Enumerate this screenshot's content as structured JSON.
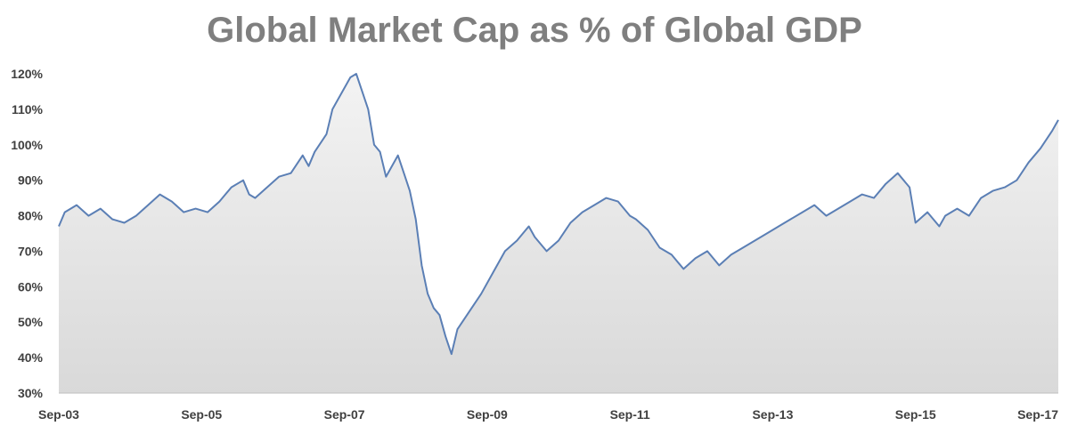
{
  "chart_data": {
    "type": "area",
    "title": "Global Market Cap as % of Global GDP",
    "xlabel": "",
    "ylabel": "",
    "y_tick_labels": [
      "30%",
      "40%",
      "50%",
      "60%",
      "70%",
      "80%",
      "90%",
      "100%",
      "110%",
      "120%"
    ],
    "x_tick_labels": [
      "Sep-03",
      "Sep-05",
      "Sep-07",
      "Sep-09",
      "Sep-11",
      "Sep-13",
      "Sep-15",
      "Sep-17"
    ],
    "ylim": [
      30,
      120
    ],
    "xlim": [
      "2003-09",
      "2017-09"
    ],
    "grid": false,
    "legend": "none",
    "line_color": "#5b7fb5",
    "fill_color": "#d9d9d9",
    "series": [
      {
        "x": [
          "2003-09",
          "2003-10",
          "2003-12",
          "2004-02",
          "2004-04",
          "2004-06",
          "2004-08",
          "2004-10",
          "2004-12",
          "2005-02",
          "2005-04",
          "2005-06",
          "2005-08",
          "2005-10",
          "2005-12",
          "2006-02",
          "2006-04",
          "2006-05",
          "2006-06",
          "2006-08",
          "2006-10",
          "2006-12",
          "2007-02",
          "2007-03",
          "2007-04",
          "2007-06",
          "2007-07",
          "2007-08",
          "2007-10",
          "2007-11",
          "2007-12",
          "2008-01",
          "2008-02",
          "2008-03",
          "2008-04",
          "2008-05",
          "2008-06",
          "2008-07",
          "2008-08",
          "2008-09",
          "2008-10",
          "2008-11",
          "2008-12",
          "2009-01",
          "2009-02",
          "2009-03",
          "2009-04",
          "2009-06",
          "2009-08",
          "2009-10",
          "2009-12",
          "2010-02",
          "2010-04",
          "2010-05",
          "2010-07",
          "2010-09",
          "2010-11",
          "2011-01",
          "2011-03",
          "2011-05",
          "2011-07",
          "2011-09",
          "2011-10",
          "2011-12",
          "2012-02",
          "2012-04",
          "2012-06",
          "2012-08",
          "2012-10",
          "2012-12",
          "2013-02",
          "2013-04",
          "2013-06",
          "2013-08",
          "2013-10",
          "2013-12",
          "2014-02",
          "2014-04",
          "2014-06",
          "2014-08",
          "2014-10",
          "2014-12",
          "2015-02",
          "2015-04",
          "2015-06",
          "2015-08",
          "2015-09",
          "2015-11",
          "2016-01",
          "2016-02",
          "2016-04",
          "2016-06",
          "2016-08",
          "2016-10",
          "2016-12",
          "2017-02",
          "2017-04",
          "2017-06",
          "2017-08",
          "2017-09"
        ],
        "values": [
          77,
          81,
          83,
          80,
          82,
          79,
          78,
          80,
          83,
          86,
          84,
          81,
          82,
          81,
          84,
          88,
          90,
          86,
          85,
          88,
          91,
          92,
          97,
          94,
          98,
          103,
          110,
          113,
          119,
          120,
          115,
          110,
          100,
          98,
          91,
          94,
          97,
          92,
          87,
          79,
          66,
          58,
          54,
          52,
          46,
          41,
          48,
          53,
          58,
          64,
          70,
          73,
          77,
          74,
          70,
          73,
          78,
          81,
          83,
          85,
          84,
          80,
          79,
          76,
          71,
          69,
          65,
          68,
          70,
          66,
          69,
          71,
          73,
          75,
          77,
          79,
          81,
          83,
          80,
          82,
          84,
          86,
          85,
          89,
          92,
          88,
          78,
          81,
          77,
          80,
          82,
          80,
          85,
          87,
          88,
          90,
          95,
          99,
          104,
          107
        ]
      }
    ]
  }
}
